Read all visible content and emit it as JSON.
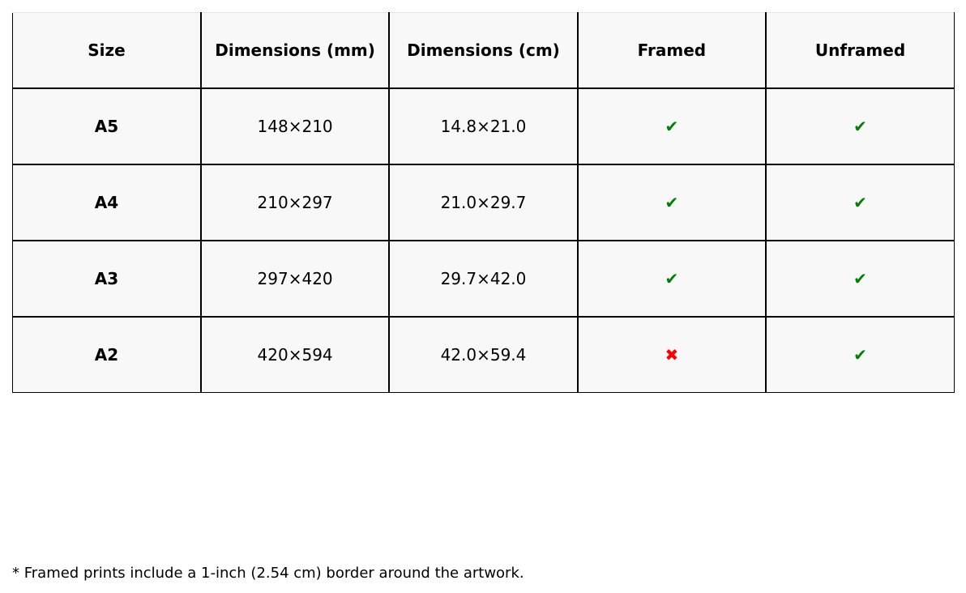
{
  "table": {
    "headers": [
      "Size",
      "Dimensions (mm)",
      "Dimensions (cm)",
      "Framed",
      "Unframed"
    ],
    "rows": [
      {
        "size": "A5",
        "mm": "148×210",
        "cm": "14.8×21.0",
        "framed": "✔",
        "unframed": "✔"
      },
      {
        "size": "A4",
        "mm": "210×297",
        "cm": "21.0×29.7",
        "framed": "✔",
        "unframed": "✔"
      },
      {
        "size": "A3",
        "mm": "297×420",
        "cm": "29.7×42.0",
        "framed": "✔",
        "unframed": "✔"
      },
      {
        "size": "A2",
        "mm": "420×594",
        "cm": "42.0×59.4",
        "framed": "✖",
        "unframed": "✔"
      }
    ],
    "colors": {
      "yes": "#008000",
      "no": "#ff0000",
      "cell_bg": "#f8f8f8"
    }
  },
  "footnote": "* Framed prints include a 1-inch (2.54 cm) border around the artwork."
}
